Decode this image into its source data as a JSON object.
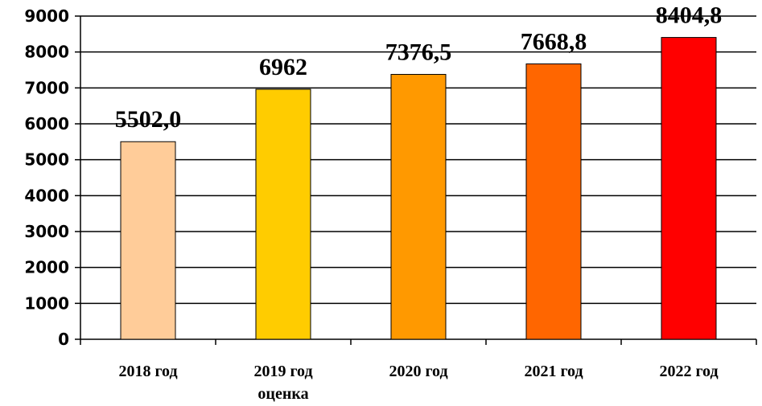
{
  "chart_data": {
    "type": "bar",
    "categories": [
      [
        "2018 год"
      ],
      [
        "2019 год",
        "оценка"
      ],
      [
        "2020 год"
      ],
      [
        "2021 год"
      ],
      [
        "2022 год"
      ]
    ],
    "values": [
      5502.0,
      6962,
      7376.5,
      7668.8,
      8404.8
    ],
    "data_labels": [
      "5502,0",
      "6962",
      "7376,5",
      "7668,8",
      "8404,8"
    ],
    "bar_colors": [
      "#FFCC99",
      "#FFCC00",
      "#FF9900",
      "#FF6600",
      "#FF0000"
    ],
    "ylim": [
      0,
      9000
    ],
    "yticks": [
      0,
      1000,
      2000,
      3000,
      4000,
      5000,
      6000,
      7000,
      8000,
      9000
    ],
    "grid": true,
    "legend": "none"
  }
}
